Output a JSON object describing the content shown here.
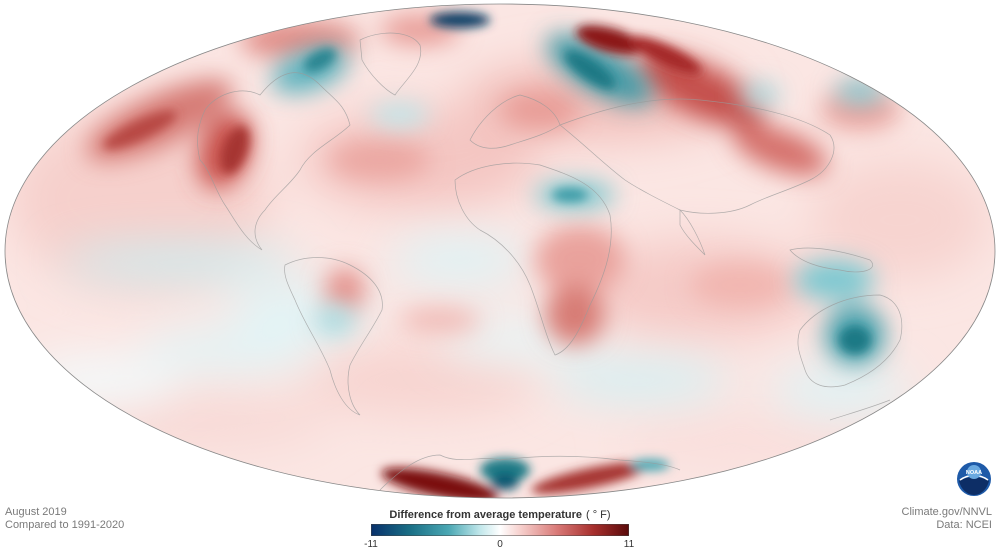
{
  "caption": {
    "date": "August 2019",
    "baseline": "Compared to 1991-2020"
  },
  "credits": {
    "site": "Climate.gov/NNVL",
    "data": "Data: NCEI"
  },
  "legend": {
    "title": "Difference from average temperature",
    "unit": "( ° F)",
    "min_label": "-11",
    "mid_label": "0",
    "max_label": "11",
    "min_value": -11,
    "max_value": 11,
    "colors": [
      "#08306b",
      "#1a6f86",
      "#4aa7b3",
      "#bfe6ea",
      "#ffffff",
      "#f6cfcc",
      "#d97a78",
      "#a8302e",
      "#5a0a0a"
    ]
  },
  "logo": {
    "text": "NOAA",
    "colors": {
      "primary": "#1e5aa8",
      "secondary": "#0d2e66",
      "light": "#6aa9e0"
    }
  },
  "map": {
    "projection": "Mollweide",
    "anomaly_colors": {
      "warm_light": "#f6d2cf",
      "warm_mid": "#e59a95",
      "warm_strong": "#b13a36",
      "warm_extreme": "#7a0f10",
      "cool_light": "#cdeef1",
      "cool_mid": "#6cbcc5",
      "cool_strong": "#1a7a86",
      "cool_extreme": "#0b3f66"
    }
  }
}
